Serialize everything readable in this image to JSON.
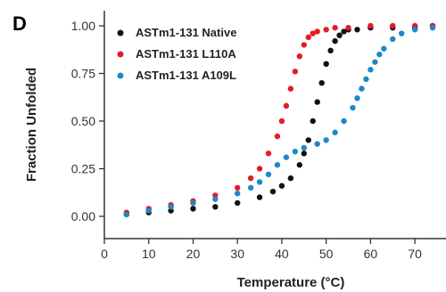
{
  "panel_label": "D",
  "chart_data": {
    "type": "scatter",
    "xlabel": "Temperature (°C)",
    "ylabel": "Fraction Unfolded",
    "xlim": [
      0,
      75
    ],
    "ylim": [
      -0.05,
      1.05
    ],
    "xticks": [
      0,
      10,
      20,
      30,
      40,
      50,
      60,
      70
    ],
    "yticks": [
      0.0,
      0.25,
      0.5,
      0.75,
      1.0
    ],
    "ytick_labels": [
      "0.00",
      "0.25",
      "0.50",
      "0.75",
      "1.00"
    ],
    "legend_position": "top-left",
    "grid": false,
    "series": [
      {
        "name": "ASTm1-131 Native",
        "color": "#111111",
        "x": [
          5,
          10,
          15,
          20,
          25,
          30,
          35,
          38,
          40,
          42,
          44,
          45,
          46,
          47,
          48,
          49,
          50,
          51,
          52,
          53,
          54,
          55,
          57,
          60,
          65,
          70,
          74
        ],
        "y": [
          0.01,
          0.02,
          0.03,
          0.04,
          0.05,
          0.07,
          0.1,
          0.13,
          0.16,
          0.2,
          0.27,
          0.33,
          0.4,
          0.5,
          0.6,
          0.7,
          0.8,
          0.87,
          0.92,
          0.95,
          0.97,
          0.98,
          0.98,
          0.99,
          0.99,
          0.99,
          1.0
        ]
      },
      {
        "name": "ASTm1-131 L110A",
        "color": "#e31a2a",
        "x": [
          5,
          10,
          15,
          20,
          25,
          30,
          33,
          35,
          37,
          39,
          40,
          41,
          42,
          43,
          44,
          45,
          46,
          47,
          48,
          50,
          52,
          55,
          60,
          65,
          70,
          74
        ],
        "y": [
          0.02,
          0.04,
          0.06,
          0.08,
          0.11,
          0.15,
          0.2,
          0.25,
          0.33,
          0.42,
          0.5,
          0.58,
          0.67,
          0.76,
          0.84,
          0.9,
          0.94,
          0.96,
          0.97,
          0.98,
          0.99,
          0.99,
          1.0,
          1.0,
          1.0,
          1.0
        ]
      },
      {
        "name": "ASTm1-131 A109L",
        "color": "#1e88c8",
        "x": [
          5,
          10,
          15,
          20,
          25,
          30,
          33,
          35,
          37,
          39,
          41,
          43,
          45,
          48,
          50,
          52,
          54,
          56,
          57,
          58,
          59,
          60,
          61,
          62,
          63,
          65,
          67,
          70,
          74
        ],
        "y": [
          0.01,
          0.03,
          0.05,
          0.07,
          0.09,
          0.12,
          0.15,
          0.18,
          0.22,
          0.27,
          0.31,
          0.34,
          0.36,
          0.38,
          0.4,
          0.44,
          0.5,
          0.57,
          0.62,
          0.67,
          0.72,
          0.77,
          0.81,
          0.85,
          0.88,
          0.93,
          0.96,
          0.98,
          0.99
        ]
      }
    ]
  }
}
